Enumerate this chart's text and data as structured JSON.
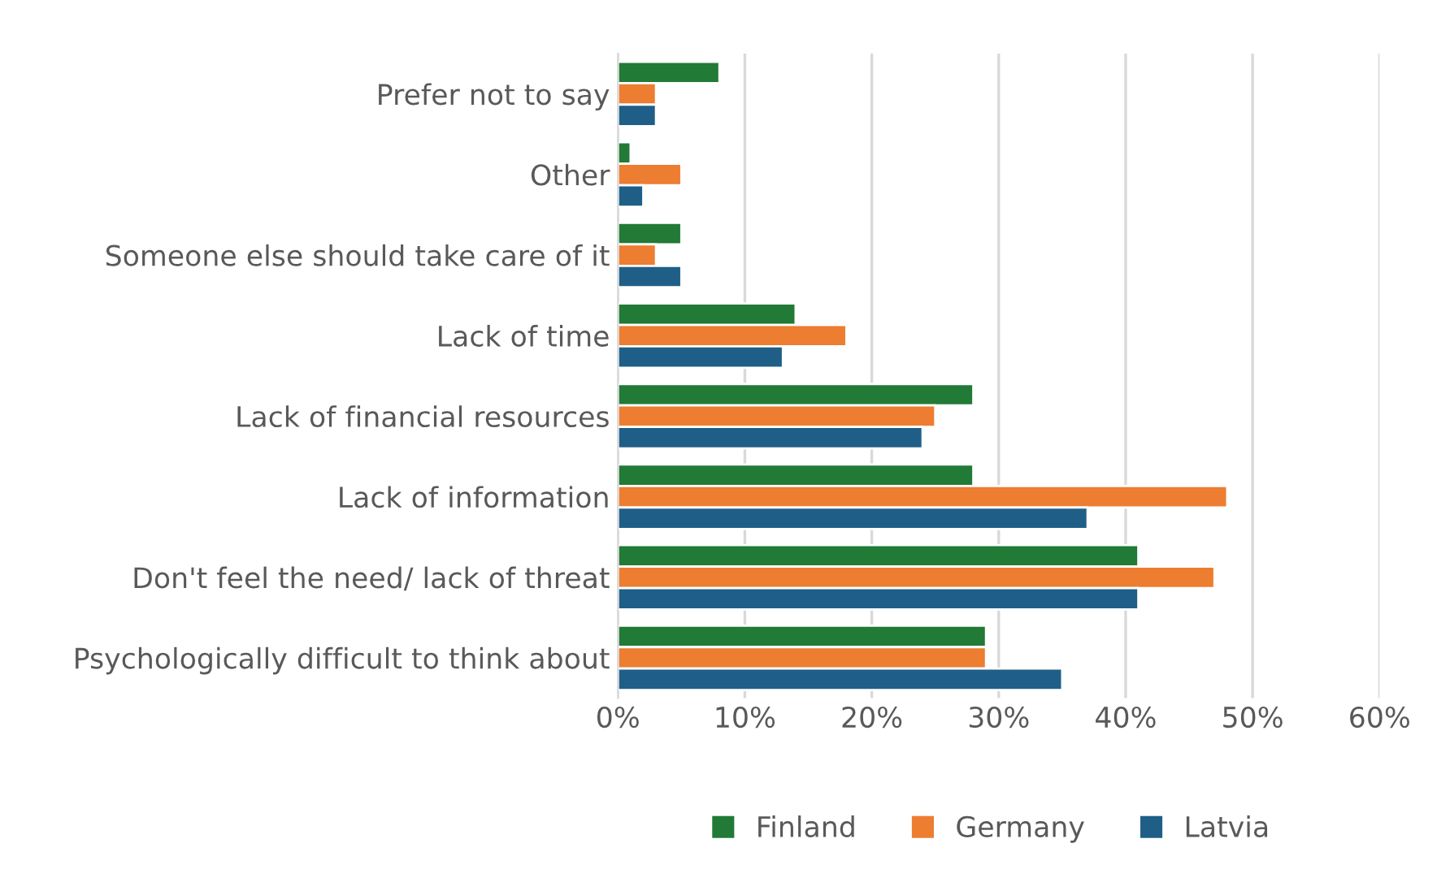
{
  "chart_data": {
    "type": "bar",
    "orientation": "horizontal",
    "categories": [
      "Prefer not to say",
      "Other",
      "Someone else should take care of it",
      "Lack of time",
      "Lack of financial resources",
      "Lack of information",
      "Don't feel the need/ lack of threat",
      "Psychologically difficult to think about"
    ],
    "series": [
      {
        "name": "Finland",
        "color": "#217a36",
        "values": [
          8,
          1,
          5,
          14,
          28,
          28,
          41,
          29
        ]
      },
      {
        "name": "Germany",
        "color": "#ed7d31",
        "values": [
          3,
          5,
          3,
          18,
          25,
          48,
          47,
          29
        ]
      },
      {
        "name": "Latvia",
        "color": "#1f5f87",
        "values": [
          3,
          2,
          5,
          13,
          24,
          37,
          41,
          35
        ]
      }
    ],
    "xlim": [
      0,
      60
    ],
    "xticks": [
      {
        "value": 0,
        "label": "0%"
      },
      {
        "value": 10,
        "label": "10%"
      },
      {
        "value": 20,
        "label": "20%"
      },
      {
        "value": 30,
        "label": "30%"
      },
      {
        "value": 40,
        "label": "40%"
      },
      {
        "value": 50,
        "label": "50%"
      },
      {
        "value": 60,
        "label": "60%"
      }
    ],
    "grid": "x",
    "legend": "bottom"
  }
}
